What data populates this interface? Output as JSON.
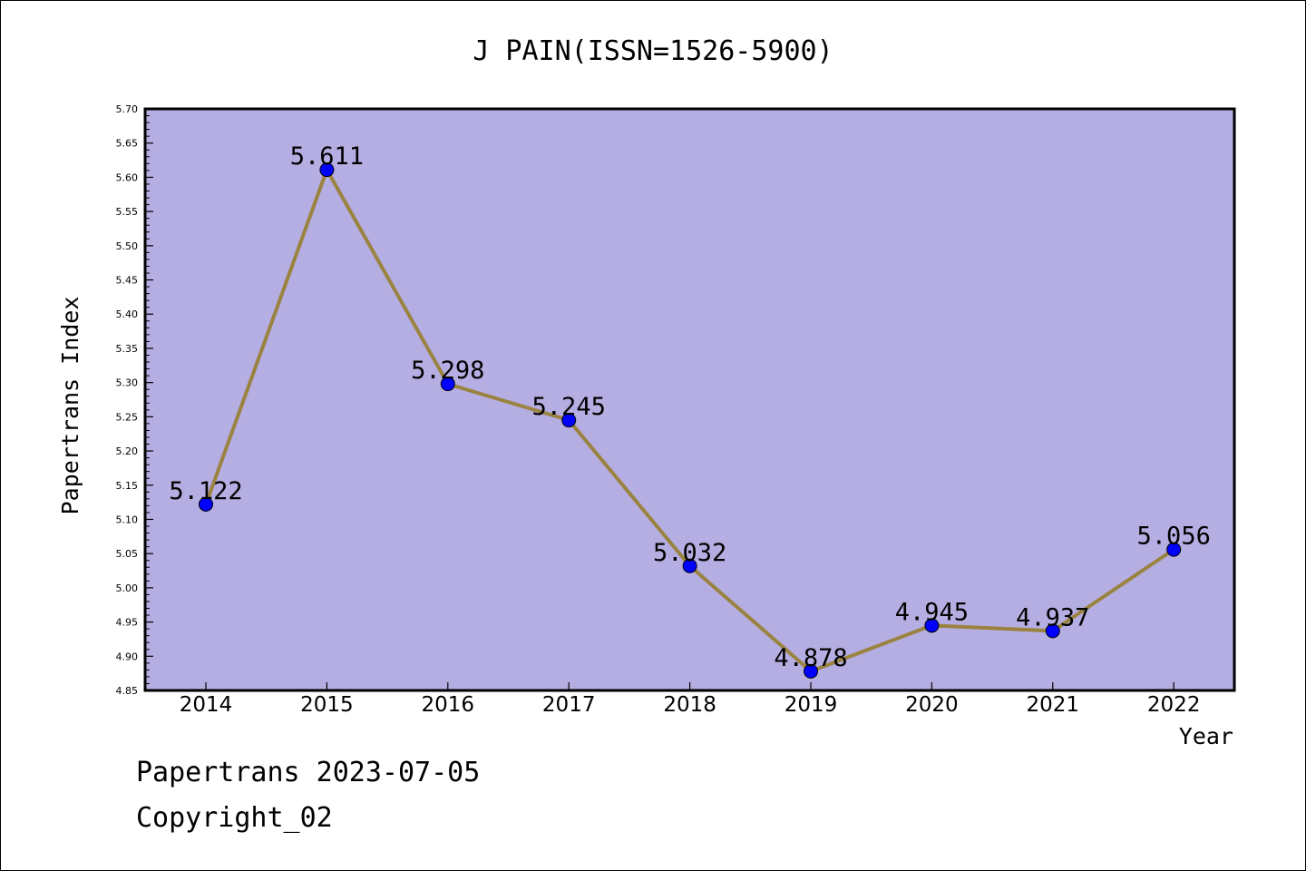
{
  "chart_data": {
    "type": "line",
    "title": "J PAIN(ISSN=1526-5900)",
    "xlabel": "Year",
    "ylabel": "Papertrans Index",
    "categories": [
      "2014",
      "2015",
      "2016",
      "2017",
      "2018",
      "2019",
      "2020",
      "2021",
      "2022"
    ],
    "values": [
      5.122,
      5.611,
      5.298,
      5.245,
      5.032,
      4.878,
      4.945,
      4.937,
      5.056
    ],
    "data_labels": [
      "5.122",
      "5.611",
      "5.298",
      "5.245",
      "5.032",
      "4.878",
      "4.945",
      "4.937",
      "5.056"
    ],
    "ylim": [
      4.85,
      5.7
    ],
    "y_ticks": [
      "4.85",
      "4.90",
      "4.95",
      "5.00",
      "5.05",
      "5.10",
      "5.15",
      "5.20",
      "5.25",
      "5.30",
      "5.35",
      "5.40",
      "5.45",
      "5.50",
      "5.55",
      "5.60",
      "5.65",
      "5.70"
    ],
    "grid": false,
    "legend": "none",
    "colors": {
      "plot_background": "#b5aee2",
      "line": "#9a8340",
      "marker": "#0000ff"
    }
  },
  "footer": {
    "line1": "Papertrans 2023-07-05",
    "line2": "Copyright_02"
  }
}
